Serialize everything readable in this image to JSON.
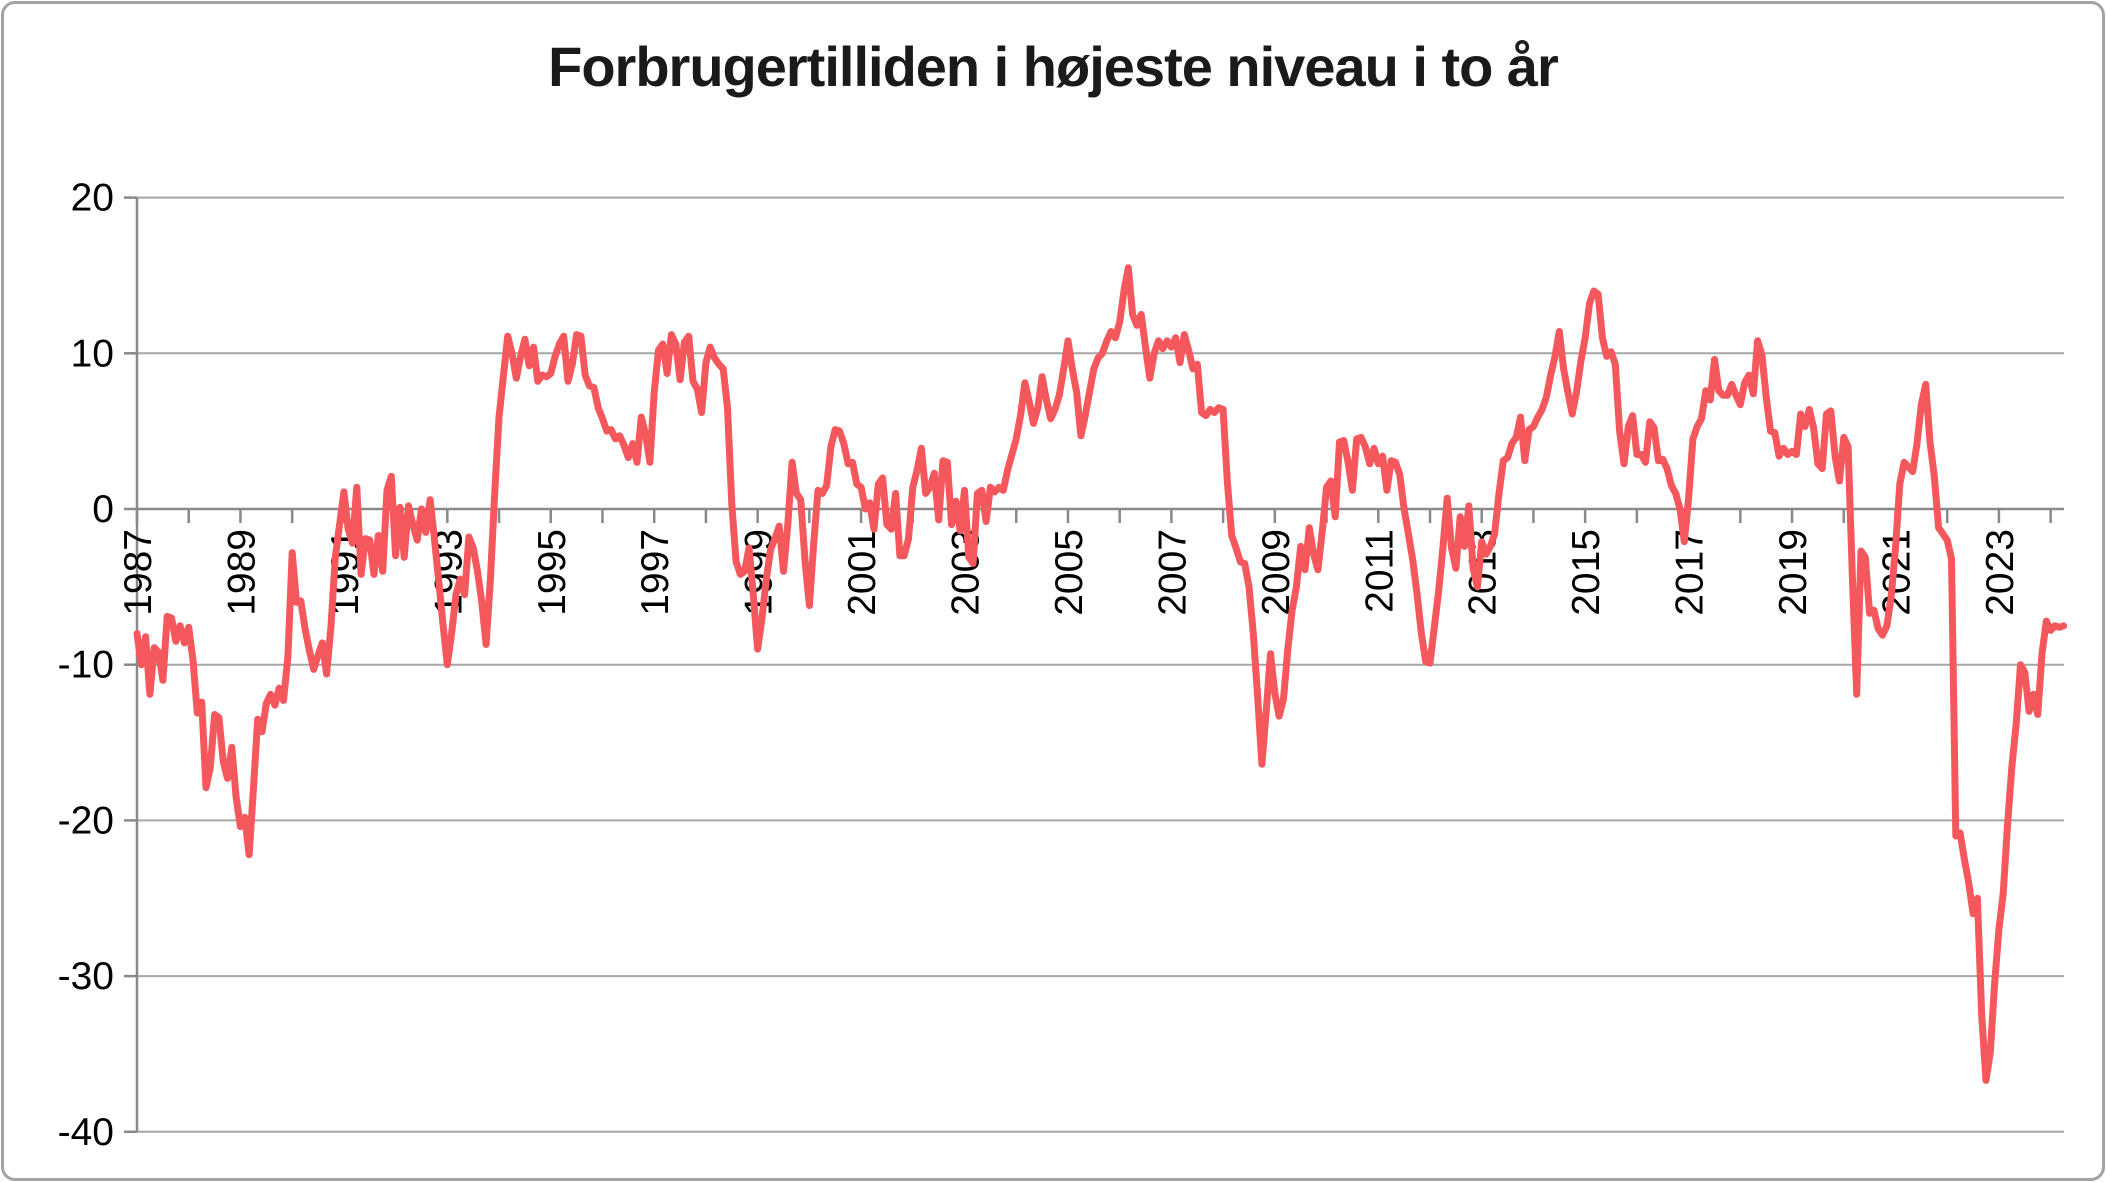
{
  "title": "Forbrugertilliden i højeste niveau i to år",
  "colors": {
    "line": "#f4585c",
    "grid": "#a6a6a6",
    "axis": "#898989",
    "text": "#000000",
    "card_border": "#a3a3a3",
    "background": "#ffffff"
  },
  "chart_data": {
    "type": "line",
    "title": "Forbrugertilliden i højeste niveau i to år",
    "xlabel": "",
    "ylabel": "",
    "ylim": [
      -40,
      20
    ],
    "y_ticks": [
      20,
      10,
      0,
      -10,
      -20,
      -30,
      -40
    ],
    "x_tick_years_labeled": [
      1987,
      1989,
      1991,
      1993,
      1995,
      1997,
      1999,
      2001,
      2003,
      2005,
      2007,
      2009,
      2011,
      2013,
      2015,
      2017,
      2019,
      2021,
      2023
    ],
    "x_tick_label_rotation_deg": -90,
    "grid": "horizontal-only",
    "legend_position": "none",
    "frequency": "monthly",
    "first_point": "1987-01",
    "last_point": "2024-04",
    "series": [
      {
        "values_by_year": {
          "1987": [
            -8.0,
            -10.0,
            -8.2,
            -11.9,
            -8.9,
            -9.2,
            -11.0,
            -6.9,
            -7.0,
            -8.5,
            -7.5,
            -8.6
          ],
          "1988": [
            -7.6,
            -9.7,
            -13.1,
            -12.4,
            -17.9,
            -16.6,
            -13.2,
            -13.4,
            -16.2,
            -17.3,
            -15.3,
            -18.5
          ],
          "1989": [
            -20.4,
            -19.8,
            -22.2,
            -18.0,
            -13.5,
            -14.3,
            -12.5,
            -11.9,
            -12.6,
            -11.5,
            -12.3,
            -9.5
          ],
          "1990": [
            -2.8,
            -6.0,
            -5.9,
            -7.7,
            -9.1,
            -10.3,
            -9.4,
            -8.6,
            -10.6,
            -7.6,
            -3.1,
            -1.0
          ],
          "1991": [
            1.1,
            -1.3,
            -2.2,
            1.4,
            -4.2,
            -1.9,
            -2.0,
            -4.2,
            -1.7,
            -4.0,
            1.2,
            2.1
          ],
          "1992": [
            -3.0,
            0.1,
            -3.1,
            0.2,
            -1.0,
            -2.0,
            0.0,
            -1.5,
            0.6,
            -1.9,
            -4.6,
            -7.4
          ],
          "1993": [
            -10.0,
            -8.0,
            -5.5,
            -4.5,
            -5.5,
            -1.8,
            -2.5,
            -4.0,
            -6.0,
            -8.7,
            -4.5,
            1.0
          ],
          "1994": [
            5.9,
            8.5,
            11.1,
            10.0,
            8.4,
            9.8,
            10.9,
            9.2,
            10.4,
            8.2,
            8.6,
            8.5
          ],
          "1995": [
            8.7,
            9.8,
            10.6,
            11.1,
            8.2,
            9.3,
            11.2,
            11.1,
            8.6,
            7.9,
            7.8,
            6.5
          ],
          "1996": [
            5.8,
            5.0,
            5.1,
            4.5,
            4.7,
            4.1,
            3.3,
            4.2,
            3.0,
            5.9,
            4.8,
            3.0
          ],
          "1997": [
            7.5,
            10.2,
            10.6,
            8.7,
            11.2,
            10.6,
            8.3,
            10.7,
            11.1,
            8.2,
            7.7,
            6.2
          ],
          "1998": [
            9.4,
            10.4,
            9.7,
            9.3,
            9.0,
            6.5,
            0.3,
            -3.4,
            -4.2,
            -4.0,
            -2.5,
            -5.5
          ],
          "1999": [
            -9.0,
            -7.0,
            -4.5,
            -2.6,
            -1.9,
            -1.1,
            -4.0,
            -1.0,
            3.0,
            1.0,
            0.6,
            -3.3
          ],
          "2000": [
            -6.2,
            -2.2,
            1.2,
            1.0,
            1.5,
            4.0,
            5.1,
            5.0,
            4.2,
            2.9,
            3.0,
            1.6
          ],
          "2001": [
            1.4,
            0.0,
            0.4,
            -1.3,
            1.6,
            2.0,
            -1.0,
            -1.3,
            1.0,
            -3.0,
            -3.0,
            -1.9
          ],
          "2002": [
            1.4,
            2.5,
            3.9,
            1.0,
            1.4,
            2.3,
            -0.7,
            3.1,
            3.0,
            -1.0,
            0.5,
            -1.4
          ],
          "2003": [
            1.2,
            -3.1,
            -3.5,
            1.0,
            1.2,
            -0.8,
            1.4,
            1.1,
            1.4,
            1.2,
            2.5,
            3.5
          ],
          "2004": [
            4.5,
            6.0,
            8.1,
            6.9,
            5.5,
            6.5,
            8.5,
            7.0,
            5.8,
            6.4,
            7.3,
            9.0
          ],
          "2005": [
            10.8,
            9.0,
            7.5,
            4.7,
            6.0,
            7.5,
            9.0,
            9.7,
            10.0,
            10.8,
            11.4,
            11.0
          ],
          "2006": [
            12.0,
            14.0,
            15.5,
            12.5,
            11.8,
            12.5,
            10.4,
            8.4,
            10.0,
            10.8,
            10.3,
            10.8
          ],
          "2007": [
            10.4,
            11.0,
            9.4,
            11.2,
            10.2,
            9.0,
            9.3,
            6.2,
            6.0,
            6.4,
            6.2,
            6.5
          ],
          "2008": [
            6.4,
            1.7,
            -1.7,
            -2.5,
            -3.4,
            -3.5,
            -5.0,
            -8.0,
            -12.0,
            -16.4,
            -13.0,
            -9.3
          ],
          "2009": [
            -11.8,
            -13.3,
            -12.2,
            -9.0,
            -6.5,
            -5.0,
            -2.4,
            -3.9,
            -1.2,
            -2.9,
            -3.9,
            -1.4
          ],
          "2010": [
            1.4,
            1.8,
            -0.5,
            4.3,
            4.4,
            3.0,
            1.2,
            4.5,
            4.6,
            4.0,
            2.9,
            3.9
          ],
          "2011": [
            2.9,
            3.4,
            1.2,
            3.1,
            3.0,
            2.2,
            0.0,
            -1.6,
            -3.3,
            -5.5,
            -8.0,
            -9.8
          ],
          "2012": [
            -9.9,
            -7.6,
            -5.3,
            -2.5,
            0.7,
            -2.5,
            -3.8,
            -0.5,
            -2.4,
            0.2,
            -3.8,
            -5.0
          ],
          "2013": [
            -2.1,
            -2.9,
            -2.4,
            -1.6,
            1.0,
            3.1,
            3.3,
            4.2,
            4.6,
            5.9,
            3.1,
            5.1
          ],
          "2014": [
            5.3,
            5.9,
            6.4,
            7.2,
            8.6,
            9.8,
            11.4,
            9.0,
            7.5,
            6.1,
            7.5,
            9.5
          ],
          "2015": [
            11.0,
            13.2,
            14.0,
            13.8,
            11.0,
            9.8,
            10.1,
            9.3,
            5.0,
            2.9,
            5.3,
            6.0
          ],
          "2016": [
            3.5,
            3.5,
            3.0,
            5.6,
            5.2,
            3.1,
            3.2,
            2.6,
            1.5,
            1.0,
            0.0,
            -2.1
          ],
          "2017": [
            0.7,
            4.5,
            5.3,
            5.8,
            7.6,
            7.0,
            9.6,
            7.6,
            7.3,
            7.3,
            8.0,
            7.3
          ],
          "2018": [
            6.7,
            8.1,
            8.6,
            7.4,
            10.8,
            9.9,
            7.2,
            5.0,
            4.9,
            3.4,
            3.9,
            3.5
          ],
          "2019": [
            3.7,
            3.5,
            6.1,
            5.3,
            6.4,
            5.2,
            2.9,
            2.6,
            6.1,
            6.3,
            3.4,
            1.8
          ],
          "2020": [
            4.6,
            4.0,
            -4.4,
            -11.9,
            -2.7,
            -3.1,
            -6.7,
            -6.5,
            -7.7,
            -8.1,
            -7.5,
            -5.6
          ],
          "2021": [
            -2.5,
            1.6,
            3.0,
            2.7,
            2.4,
            4.2,
            6.7,
            8.0,
            4.3,
            2.1,
            -1.2,
            -1.6
          ],
          "2022": [
            -2.0,
            -3.2,
            -21.0,
            -20.8,
            -22.5,
            -24.0,
            -26.0,
            -25.0,
            -32.5,
            -36.7,
            -34.9,
            -30.5
          ],
          "2023": [
            -27.0,
            -24.7,
            -20.3,
            -16.6,
            -13.8,
            -10.0,
            -10.5,
            -13.0,
            -11.9,
            -13.2,
            -9.3,
            -7.2
          ],
          "2024": [
            -7.8,
            -7.5,
            -7.6,
            -7.5
          ]
        }
      }
    ]
  }
}
